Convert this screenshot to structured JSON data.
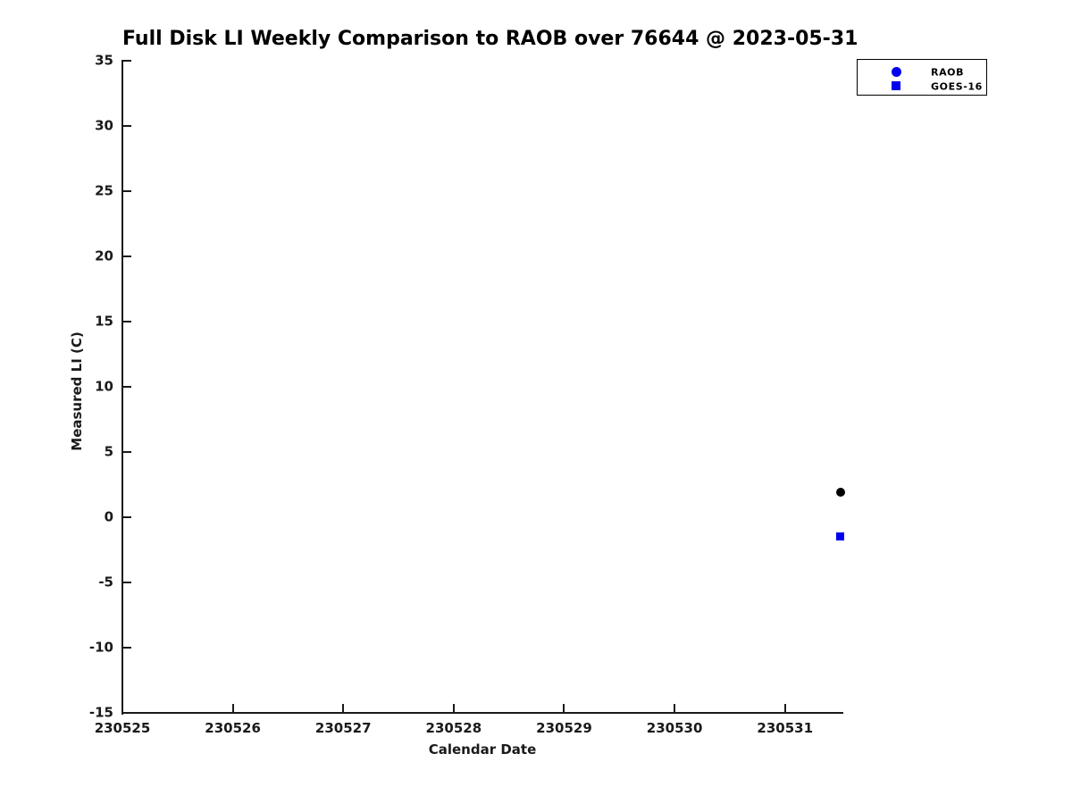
{
  "figure": {
    "title": "Full Disk LI Weekly Comparison to RAOB over 76644 @ 2023-05-31"
  },
  "chart_data": {
    "type": "scatter",
    "title": "Full Disk LI Weekly Comparison to RAOB over 76644 @ 2023-05-31",
    "xlabel": "Calendar Date",
    "ylabel": "Measured LI (C)",
    "xlim": [
      230525,
      230531.52
    ],
    "ylim": [
      -15,
      35
    ],
    "xticks": [
      230525,
      230526,
      230527,
      230528,
      230529,
      230530,
      230531
    ],
    "yticks": [
      -15,
      -10,
      -5,
      0,
      5,
      10,
      15,
      20,
      25,
      30,
      35
    ],
    "grid": false,
    "colors": {
      "series_blue": "#0000ee",
      "raob_point": "#000000",
      "axis": "#1a1a1a"
    },
    "legend": {
      "position": "top-right",
      "entries": [
        {
          "label": "RAOB",
          "marker": "circle",
          "color": "#0000ee"
        },
        {
          "label": "GOES-16",
          "marker": "square",
          "color": "#0000ee"
        }
      ]
    },
    "series": [
      {
        "name": "RAOB",
        "marker": "circle",
        "color": "#000000",
        "points": [
          {
            "x": 230531.5,
            "y": 1.9
          }
        ]
      },
      {
        "name": "GOES-16",
        "marker": "square",
        "color": "#0000ee",
        "points": [
          {
            "x": 230531.5,
            "y": -1.5
          }
        ]
      }
    ]
  }
}
